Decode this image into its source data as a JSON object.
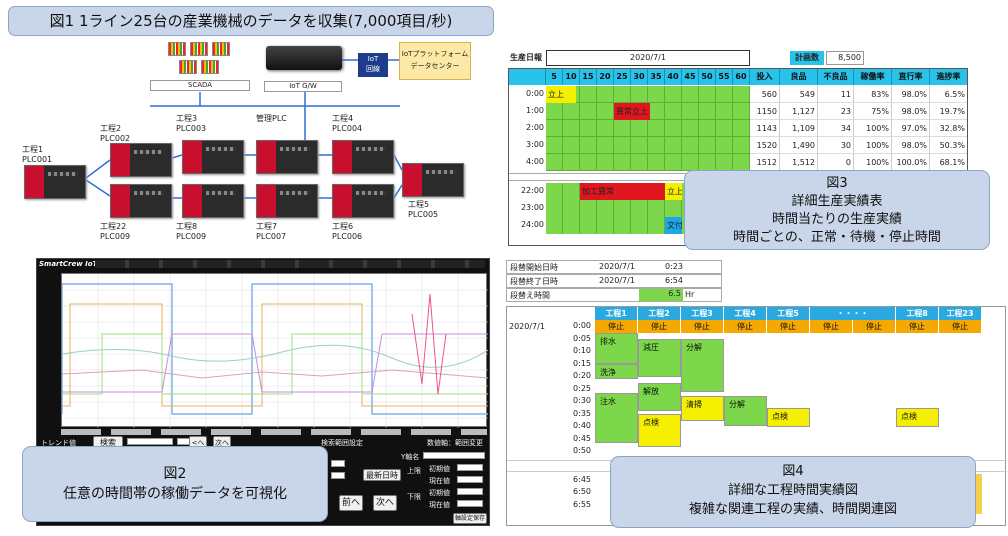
{
  "fig1": {
    "title": "図1 1ライン25台の産業機械のデータを収集(7,000項目/秒)",
    "scada_label": "SCADA",
    "iot_gw_label": "IoT G/W",
    "iot_line_label": "IoT\n回線",
    "platform_label": "IoTプラットフォーム\nデータセンター",
    "devices": [
      {
        "name": "工程1",
        "plc": "PLC001"
      },
      {
        "name": "工程2",
        "plc": "PLC002"
      },
      {
        "name": "工程3",
        "plc": "PLC003"
      },
      {
        "name": "管理PLC",
        "plc": ""
      },
      {
        "name": "工程4",
        "plc": "PLC004"
      },
      {
        "name": "工程5",
        "plc": "PLC005"
      },
      {
        "name": "工程6",
        "plc": "PLC006"
      },
      {
        "name": "工程7",
        "plc": "PLC007"
      },
      {
        "name": "工程8",
        "plc": "PLC009"
      },
      {
        "name": "工程22",
        "plc": "PLC009"
      }
    ]
  },
  "fig3": {
    "report_title": "生産日報",
    "date": "2020/7/1",
    "plan_label": "計画数",
    "plan_value": "8,500",
    "minute_headers": [
      "5",
      "10",
      "15",
      "20",
      "25",
      "30",
      "35",
      "40",
      "45",
      "50",
      "55",
      "60"
    ],
    "stat_headers": [
      "投入",
      "良品",
      "不良品",
      "稼働率",
      "直行率",
      "進捗率"
    ],
    "rows": [
      {
        "time": "0:00",
        "input": "560",
        "good": "549",
        "bad": "11",
        "util": "83%",
        "direct": "98.0%",
        "progress": "6.5%"
      },
      {
        "time": "1:00",
        "input": "1150",
        "good": "1,127",
        "bad": "23",
        "util": "75%",
        "direct": "98.0%",
        "progress": "19.7%"
      },
      {
        "time": "2:00",
        "input": "1143",
        "good": "1,109",
        "bad": "34",
        "util": "100%",
        "direct": "97.0%",
        "progress": "32.8%"
      },
      {
        "time": "3:00",
        "input": "1520",
        "good": "1,490",
        "bad": "30",
        "util": "100%",
        "direct": "98.0%",
        "progress": "50.3%"
      },
      {
        "time": "4:00",
        "input": "1512",
        "good": "1,512",
        "bad": "0",
        "util": "100%",
        "direct": "100.0%",
        "progress": "68.1%"
      }
    ],
    "late_times": [
      "22:00",
      "23:00",
      "24:00"
    ],
    "labels": {
      "startup": "立上",
      "abnormal_startup": "異常立上",
      "abnormal": "加工異常",
      "startup2": "立上",
      "text": "文付"
    },
    "callout": [
      "図3",
      "詳細生産実績表",
      "時間当たりの生産実績",
      "時間ごとの、正常・待機・停止時間"
    ]
  },
  "fig4": {
    "summary": [
      {
        "label": "段替開始日時",
        "date": "2020/7/1",
        "time": "0:23"
      },
      {
        "label": "段替終了日時",
        "date": "2020/7/1",
        "time": "6:54"
      }
    ],
    "duration_label": "段替え時間",
    "duration_value": "6.5",
    "duration_unit": "Hr",
    "headers": [
      "工程1",
      "工程2",
      "工程3",
      "工程4",
      "工程5",
      "・・・・",
      "工程8",
      "工程23"
    ],
    "date": "2020/7/1",
    "stop_label": "停止",
    "times": [
      "0:00",
      "0:05",
      "0:10",
      "0:15",
      "0:20",
      "0:25",
      "0:30",
      "0:35",
      "0:40",
      "0:45",
      "0:50",
      "6:45",
      "6:50",
      "6:55"
    ],
    "ops": {
      "drain": "排水",
      "wash": "洗浄",
      "inject": "注水",
      "depress": "減圧",
      "release": "解放",
      "inspect": "点検",
      "decompose": "分解",
      "clean": "清掃",
      "decompose2": "分解",
      "inspect5": "点検",
      "inspect8": "点検"
    },
    "callout": [
      "図4",
      "詳細な工程時間実績図",
      "複雑な関連工程の実績、時間関連図"
    ]
  },
  "fig2": {
    "brand": "SmartCrew IoT",
    "trend_label": "トレンド値",
    "search_label": "検索",
    "prev_small": "<へ",
    "next_small": "次へ",
    "range_setting": "検索範囲設定",
    "axis_change": "数値軸：範囲変更",
    "y_axis": "Y軸名",
    "latest": "最新日時",
    "upper": "上限",
    "lower": "下限",
    "initial": "初期値",
    "current": "現在値",
    "prev_big": "前へ",
    "next_big": "次へ",
    "save": "軸設定保存",
    "callout": [
      "図2",
      "任意の時間帯の稼働データを可視化"
    ]
  }
}
